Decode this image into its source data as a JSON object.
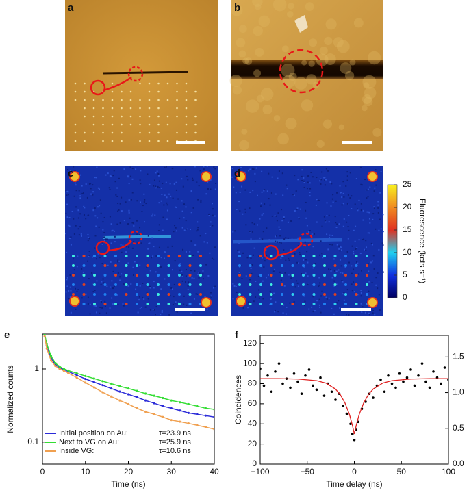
{
  "panels": [
    "a",
    "b",
    "c",
    "d"
  ],
  "colorbar": {
    "label": "Fluorescence (kcts s⁻¹)",
    "lim": [
      0,
      25
    ],
    "ticks": [
      0,
      5,
      10,
      15,
      20,
      25
    ]
  },
  "chart_data": [
    {
      "type": "line",
      "panel": "e",
      "y_label": "Normalized counts",
      "x_label": "Time (ns)",
      "log_y": true,
      "xlim": [
        0,
        40
      ],
      "xticks": [
        0,
        10,
        20,
        30,
        40
      ],
      "ylim": [
        0.05,
        3
      ],
      "yticks": [
        0.1,
        1
      ],
      "x": [
        0.5,
        1,
        2,
        3,
        4,
        5,
        6,
        8,
        10,
        12,
        14,
        16,
        18,
        20,
        22,
        24,
        26,
        28,
        30,
        32,
        34,
        36,
        38,
        40
      ],
      "series": [
        {
          "name": "Initial position on Au:",
          "tau_label": "τ=23.9 ns",
          "color": "#2b2bd8",
          "values": [
            3.0,
            2.1,
            1.4,
            1.15,
            1.04,
            0.98,
            0.92,
            0.82,
            0.73,
            0.66,
            0.6,
            0.54,
            0.49,
            0.45,
            0.41,
            0.37,
            0.34,
            0.31,
            0.29,
            0.27,
            0.25,
            0.24,
            0.23,
            0.22
          ]
        },
        {
          "name": "Next to VG on Au:",
          "tau_label": "τ=25.9 ns",
          "color": "#33dd33",
          "values": [
            3.0,
            2.2,
            1.5,
            1.2,
            1.08,
            1.0,
            0.95,
            0.87,
            0.8,
            0.74,
            0.68,
            0.63,
            0.58,
            0.54,
            0.5,
            0.46,
            0.43,
            0.4,
            0.37,
            0.35,
            0.33,
            0.31,
            0.29,
            0.28
          ]
        },
        {
          "name": "Inside VG:",
          "tau_label": "τ=10.6 ns",
          "color": "#f0a050",
          "values": [
            2.8,
            1.9,
            1.3,
            1.1,
            1.0,
            0.94,
            0.88,
            0.76,
            0.65,
            0.56,
            0.48,
            0.42,
            0.37,
            0.33,
            0.29,
            0.26,
            0.24,
            0.22,
            0.2,
            0.19,
            0.18,
            0.17,
            0.16,
            0.15
          ]
        }
      ]
    },
    {
      "type": "scatter",
      "panel": "f",
      "y_label": "Coincidences",
      "x_label": "Time delay (ns)",
      "xlim": [
        -100,
        100
      ],
      "xticks": [
        {
          "value": -100,
          "label": "−100"
        },
        {
          "value": -50,
          "label": "−50"
        },
        0,
        50,
        100
      ],
      "ylim": [
        0,
        128
      ],
      "yticks": [
        0,
        20,
        40,
        60,
        80,
        100,
        120
      ],
      "y2lim": [
        0,
        1.8
      ],
      "y2ticks": [
        {
          "value": 0,
          "label": "0.0"
        },
        0.5,
        {
          "value": 1,
          "label": "1.0"
        },
        1.5
      ],
      "series": [
        {
          "mode": "markers",
          "color": "#000000",
          "x": [
            -100,
            -96,
            -92,
            -88,
            -84,
            -80,
            -76,
            -72,
            -68,
            -64,
            -60,
            -56,
            -52,
            -48,
            -44,
            -40,
            -36,
            -32,
            -28,
            -24,
            -20,
            -16,
            -12,
            -8,
            -4,
            -2,
            0,
            2,
            4,
            8,
            12,
            16,
            20,
            24,
            28,
            32,
            36,
            40,
            44,
            48,
            52,
            56,
            60,
            64,
            68,
            72,
            76,
            80,
            84,
            88,
            92,
            96,
            100
          ],
          "values": [
            95,
            78,
            88,
            72,
            92,
            100,
            80,
            85,
            76,
            90,
            82,
            70,
            88,
            94,
            78,
            74,
            86,
            68,
            80,
            72,
            64,
            70,
            58,
            50,
            40,
            30,
            24,
            34,
            42,
            55,
            62,
            70,
            66,
            78,
            84,
            72,
            88,
            80,
            76,
            90,
            82,
            86,
            94,
            78,
            88,
            100,
            82,
            76,
            92,
            86,
            80,
            96,
            84
          ]
        },
        {
          "mode": "line",
          "color": "#e02020",
          "x": [
            -100,
            -80,
            -60,
            -40,
            -30,
            -20,
            -15,
            -10,
            -5,
            -2,
            0,
            2,
            5,
            10,
            15,
            20,
            30,
            40,
            60,
            80,
            100
          ],
          "values": [
            85,
            85,
            84.6,
            83,
            80.5,
            74.6,
            69.2,
            61,
            48.9,
            38.4,
            30,
            38.4,
            48.9,
            61,
            69.2,
            74.6,
            80.5,
            83,
            84.6,
            85,
            85
          ]
        }
      ]
    }
  ]
}
